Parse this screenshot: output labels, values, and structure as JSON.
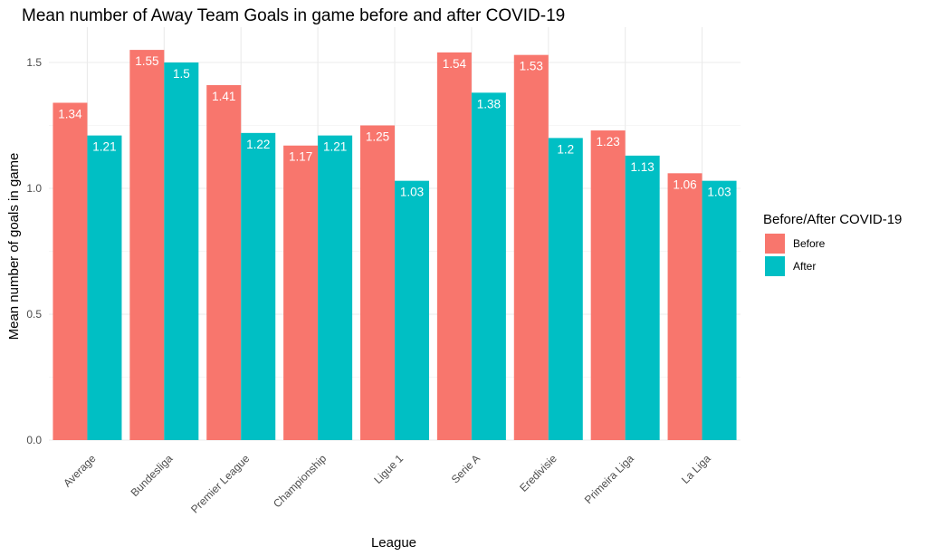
{
  "chart_data": {
    "type": "bar",
    "title": "Mean number of Away Team Goals in game before and after COVID-19",
    "xlabel": "League",
    "ylabel": "Mean number of goals in game",
    "ylim": [
      0,
      1.62
    ],
    "yticks": [
      0.0,
      0.5,
      1.0,
      1.5
    ],
    "ytick_labels": [
      "0.0",
      "0.5",
      "1.0",
      "1.5"
    ],
    "grid": true,
    "categories": [
      "Average",
      "Bundesliga",
      "Premier League",
      "Championship",
      "Ligue 1",
      "Serie A",
      "Eredivisie",
      "Primeira Liga",
      "La Liga"
    ],
    "series": [
      {
        "name": "Before",
        "color": "#F8766D",
        "values": [
          1.34,
          1.55,
          1.41,
          1.17,
          1.25,
          1.54,
          1.53,
          1.23,
          1.06
        ],
        "labels": [
          "1.34",
          "1.55",
          "1.41",
          "1.17",
          "1.25",
          "1.54",
          "1.53",
          "1.23",
          "1.06"
        ]
      },
      {
        "name": "After",
        "color": "#00BFC4",
        "values": [
          1.21,
          1.5,
          1.22,
          1.21,
          1.03,
          1.38,
          1.2,
          1.13,
          1.03
        ],
        "labels": [
          "1.21",
          "1.5",
          "1.22",
          "1.21",
          "1.03",
          "1.38",
          "1.2",
          "1.13",
          "1.03"
        ]
      }
    ],
    "legend": {
      "title": "Before/After COVID-19",
      "placement": "right"
    }
  }
}
